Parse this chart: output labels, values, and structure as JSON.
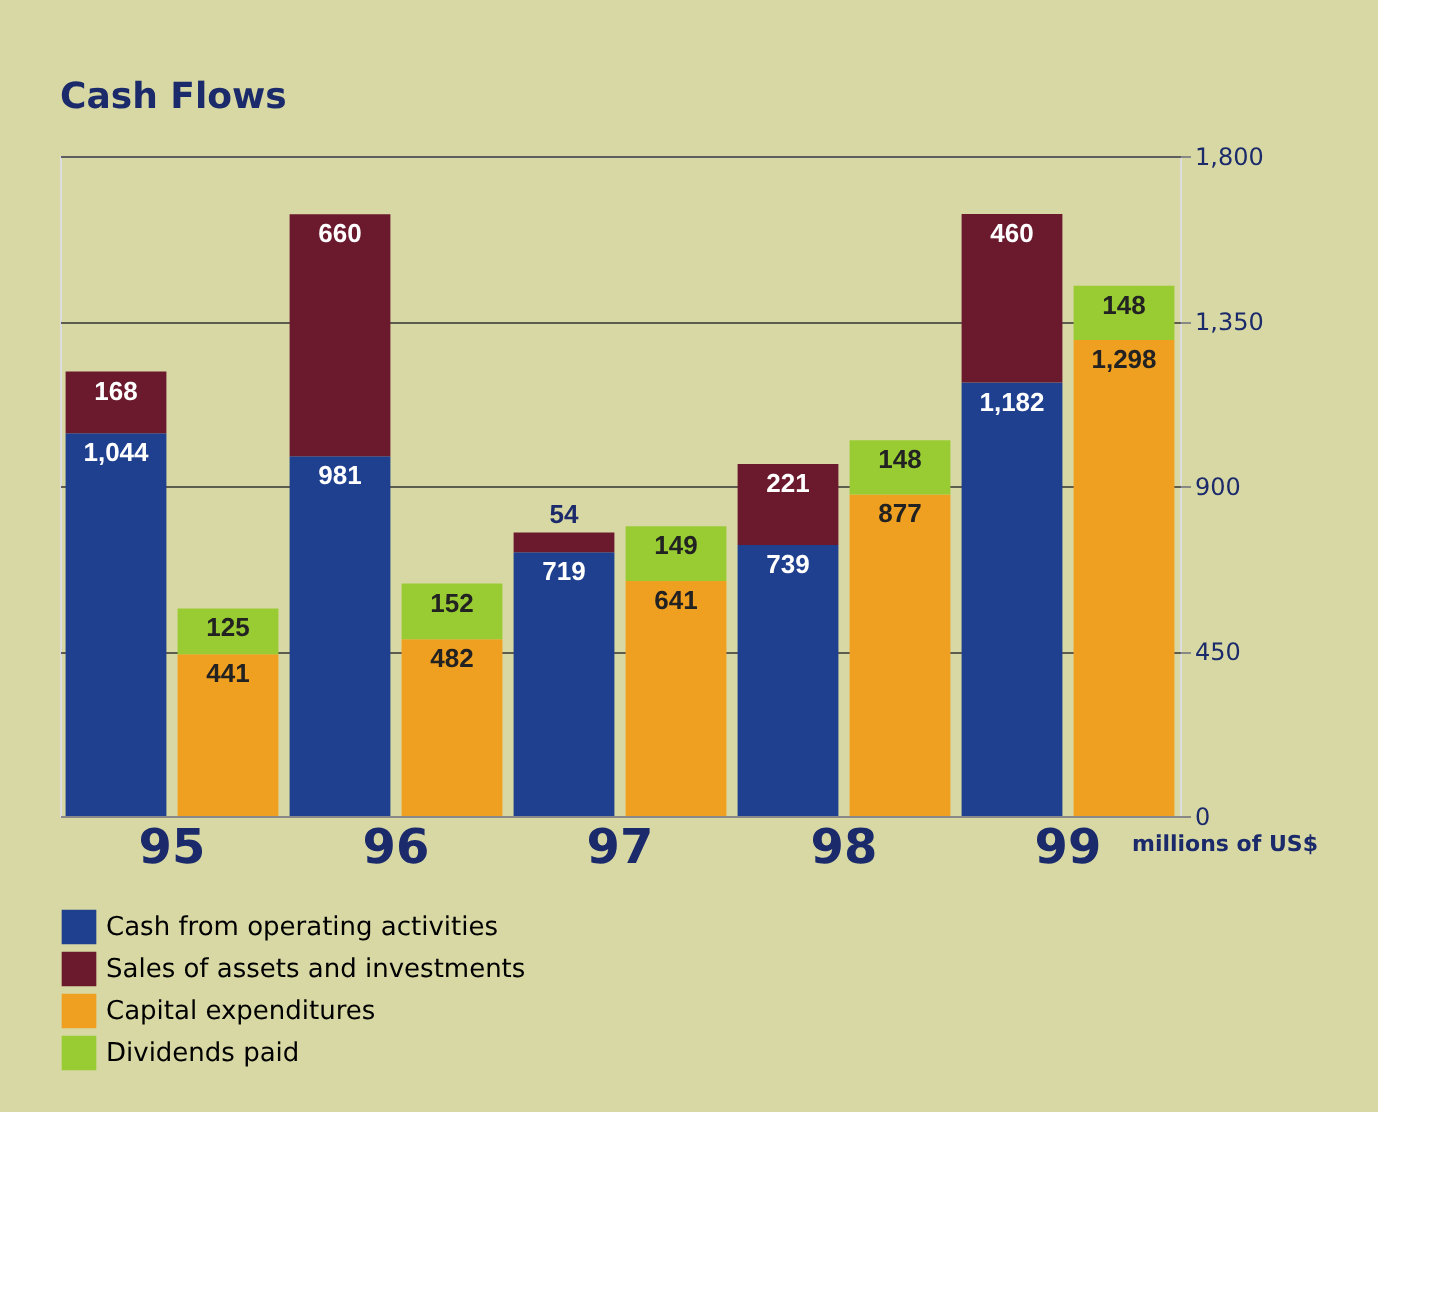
{
  "chart_data": {
    "type": "bar",
    "title": "Cash Flows",
    "categories": [
      "95",
      null,
      "96",
      null,
      "97",
      null,
      "98",
      null,
      "99",
      null
    ],
    "series": [
      {
        "name": "Cash from operating activities",
        "color": "#1f3f8f",
        "values": [
          1044,
          null,
          981,
          null,
          719,
          null,
          739,
          null,
          1182,
          null
        ],
        "value_labels": [
          "1,044",
          null,
          "981",
          null,
          "719",
          null,
          "739",
          null,
          "1,182",
          null
        ]
      },
      {
        "name": "Sales of assets and investments",
        "color": "#6b1a2e",
        "values": [
          168,
          null,
          660,
          null,
          54,
          null,
          221,
          null,
          460,
          null
        ],
        "value_labels": [
          "168",
          null,
          "660",
          null,
          "54",
          null,
          "221",
          null,
          "460",
          null
        ]
      },
      {
        "name": "Capital expenditures",
        "color": "#f0a020",
        "values": [
          null,
          441,
          null,
          482,
          null,
          641,
          null,
          877,
          null,
          1298
        ],
        "value_labels": [
          null,
          "441",
          null,
          "482",
          null,
          "641",
          null,
          "877",
          null,
          "1,298"
        ]
      },
      {
        "name": "Dividends paid",
        "color": "#99cc33",
        "values": [
          null,
          125,
          null,
          152,
          null,
          149,
          null,
          148,
          null,
          148
        ],
        "value_labels": [
          null,
          "125",
          null,
          "152",
          null,
          "149",
          null,
          "148",
          null,
          "148"
        ]
      }
    ],
    "stacked": true,
    "ylim": [
      0,
      1800
    ],
    "yticks": [
      0,
      450,
      900,
      {
        "value": 1350,
        "label": "1,350"
      },
      {
        "value": 1800,
        "label": "1,800"
      }
    ],
    "ylabel": "millions of US$",
    "grid": "y",
    "legend": "bottom left"
  }
}
